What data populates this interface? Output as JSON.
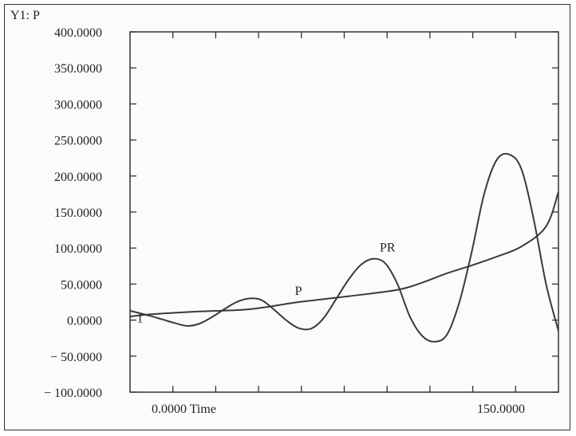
{
  "chart_data": {
    "type": "line",
    "title": "Y1: P",
    "xlabel": "Time",
    "x_tick_labels": [
      "0.0000 Time",
      "150.0000"
    ],
    "y_tick_labels": [
      "400.0000",
      "350.0000",
      "300.0000",
      "250.0000",
      "200.0000",
      "150.0000",
      "100.0000",
      "50.0000",
      "0.0000",
      "− 50.0000",
      "− 100.0000"
    ],
    "ylim": [
      -100,
      400
    ],
    "xlim": [
      -8,
      165
    ],
    "grid": false,
    "series": [
      {
        "name": "P",
        "x": [
          -8,
          0,
          20,
          40,
          60,
          80,
          100,
          110,
          120,
          130,
          140,
          150,
          160,
          165
        ],
        "y": [
          5,
          8,
          12,
          15,
          25,
          33,
          42,
          52,
          65,
          76,
          88,
          102,
          130,
          178
        ]
      },
      {
        "name": "PR",
        "x": [
          -8,
          0,
          5,
          10,
          15,
          20,
          25,
          30,
          35,
          40,
          45,
          50,
          55,
          60,
          65,
          70,
          75,
          80,
          85,
          90,
          95,
          100,
          105,
          110,
          115,
          120,
          125,
          130,
          135,
          140,
          145,
          150,
          155,
          160,
          165
        ],
        "y": [
          13,
          6,
          1,
          -4,
          -8,
          -5,
          4,
          15,
          25,
          30,
          28,
          15,
          0,
          -11,
          -12,
          2,
          28,
          55,
          76,
          85,
          79,
          50,
          5,
          -22,
          -30,
          -20,
          25,
          95,
          175,
          222,
          230,
          210,
          140,
          50,
          -15
        ]
      }
    ],
    "annotations": [
      {
        "text": "P",
        "x": 60,
        "y": 35
      },
      {
        "text": "PR",
        "x": 96,
        "y": 95
      },
      {
        "text": "1",
        "x": -4,
        "y": -3
      }
    ]
  }
}
